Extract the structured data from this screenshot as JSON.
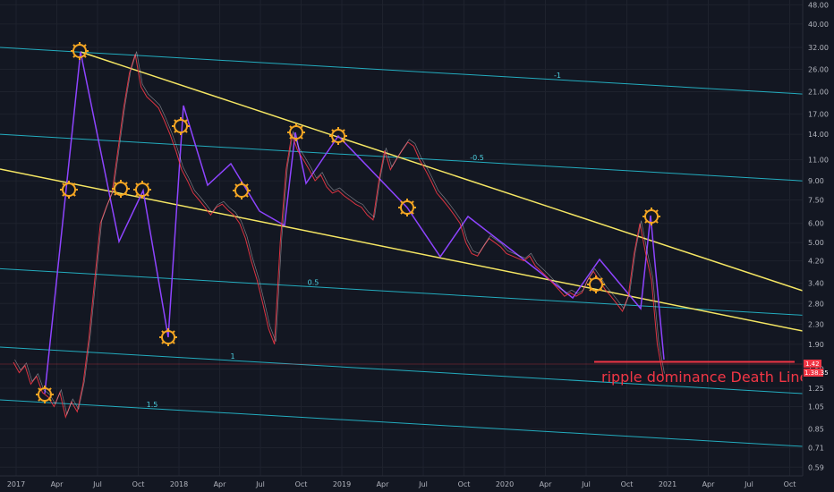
{
  "chart_data": {
    "type": "line",
    "title": "",
    "xlabel": "",
    "ylabel": "",
    "y_scale": "log",
    "ylim": [
      0.5,
      48
    ],
    "x_ticks": [
      "2017",
      "Apr",
      "Jul",
      "Oct",
      "2018",
      "Apr",
      "Jul",
      "Oct",
      "2019",
      "Apr",
      "Jul",
      "Oct",
      "2020",
      "Apr",
      "Jul",
      "Oct",
      "2021",
      "Apr",
      "Jul",
      "Oct"
    ],
    "y_ticks": [
      "48.00",
      "40.00",
      "32.00",
      "26.00",
      "21.00",
      "17.00",
      "14.00",
      "11.00",
      "9.00",
      "7.50",
      "6.00",
      "5.00",
      "4.20",
      "3.40",
      "2.80",
      "2.30",
      "1.90",
      "1.50",
      "1.25",
      "1.05",
      "0.85",
      "0.71",
      "0.59"
    ],
    "series": [
      {
        "values": [
          1.6,
          1.45,
          1.55,
          1.3,
          1.4,
          1.2,
          1.15,
          1.05,
          1.2,
          0.95,
          1.1,
          1.0,
          1.3,
          2.0,
          3.5,
          6.0,
          7.0,
          8.0,
          12.0,
          18.0,
          25.0,
          30.0,
          22.0,
          20.0,
          19.0,
          18.0,
          16.0,
          14.0,
          12.0,
          10.0,
          9.0,
          8.0,
          7.5,
          7.0,
          6.5,
          7.0,
          7.2,
          6.8,
          6.5,
          6.0,
          5.2,
          4.2,
          3.5,
          2.8,
          2.2,
          1.9,
          5.0,
          10.0,
          14.0,
          12.0,
          11.0,
          10.0,
          9.0,
          9.5,
          8.5,
          8.0,
          8.2,
          7.8,
          7.5,
          7.2,
          7.0,
          6.5,
          6.2,
          9.0,
          12.0,
          10.0,
          11.0,
          12.0,
          13.0,
          12.5,
          11.0,
          10.0,
          9.0,
          8.0,
          7.5,
          7.0,
          6.5,
          6.0,
          5.0,
          4.5,
          4.4,
          4.8,
          5.2,
          5.0,
          4.8,
          4.5,
          4.4,
          4.3,
          4.2,
          4.4,
          4.0,
          3.8,
          3.6,
          3.4,
          3.2,
          3.0,
          3.1,
          3.0,
          3.1,
          3.5,
          3.8,
          3.5,
          3.2,
          3.0,
          2.8,
          2.6,
          3.0,
          4.5,
          6.0,
          4.5,
          3.5,
          1.9,
          1.4
        ]
      }
    ],
    "trend_lines_color": "#f5e663",
    "fib_levels": [
      {
        "label": "-1",
        "value": 32.0
      },
      {
        "label": "-0.5",
        "value": 14.0
      },
      {
        "label": "0.5",
        "value": 3.9
      },
      {
        "label": "1",
        "value": 1.85
      },
      {
        "label": "1.5",
        "value": 1.12
      }
    ],
    "fib_color": "#26c6da",
    "price_color": "#f23645",
    "pattern_color": "#8e44ff",
    "marker_color": "#f5a623",
    "annotation": "ripple dominance Death Line",
    "price_tags": [
      "1.42",
      "1.38.35"
    ]
  }
}
